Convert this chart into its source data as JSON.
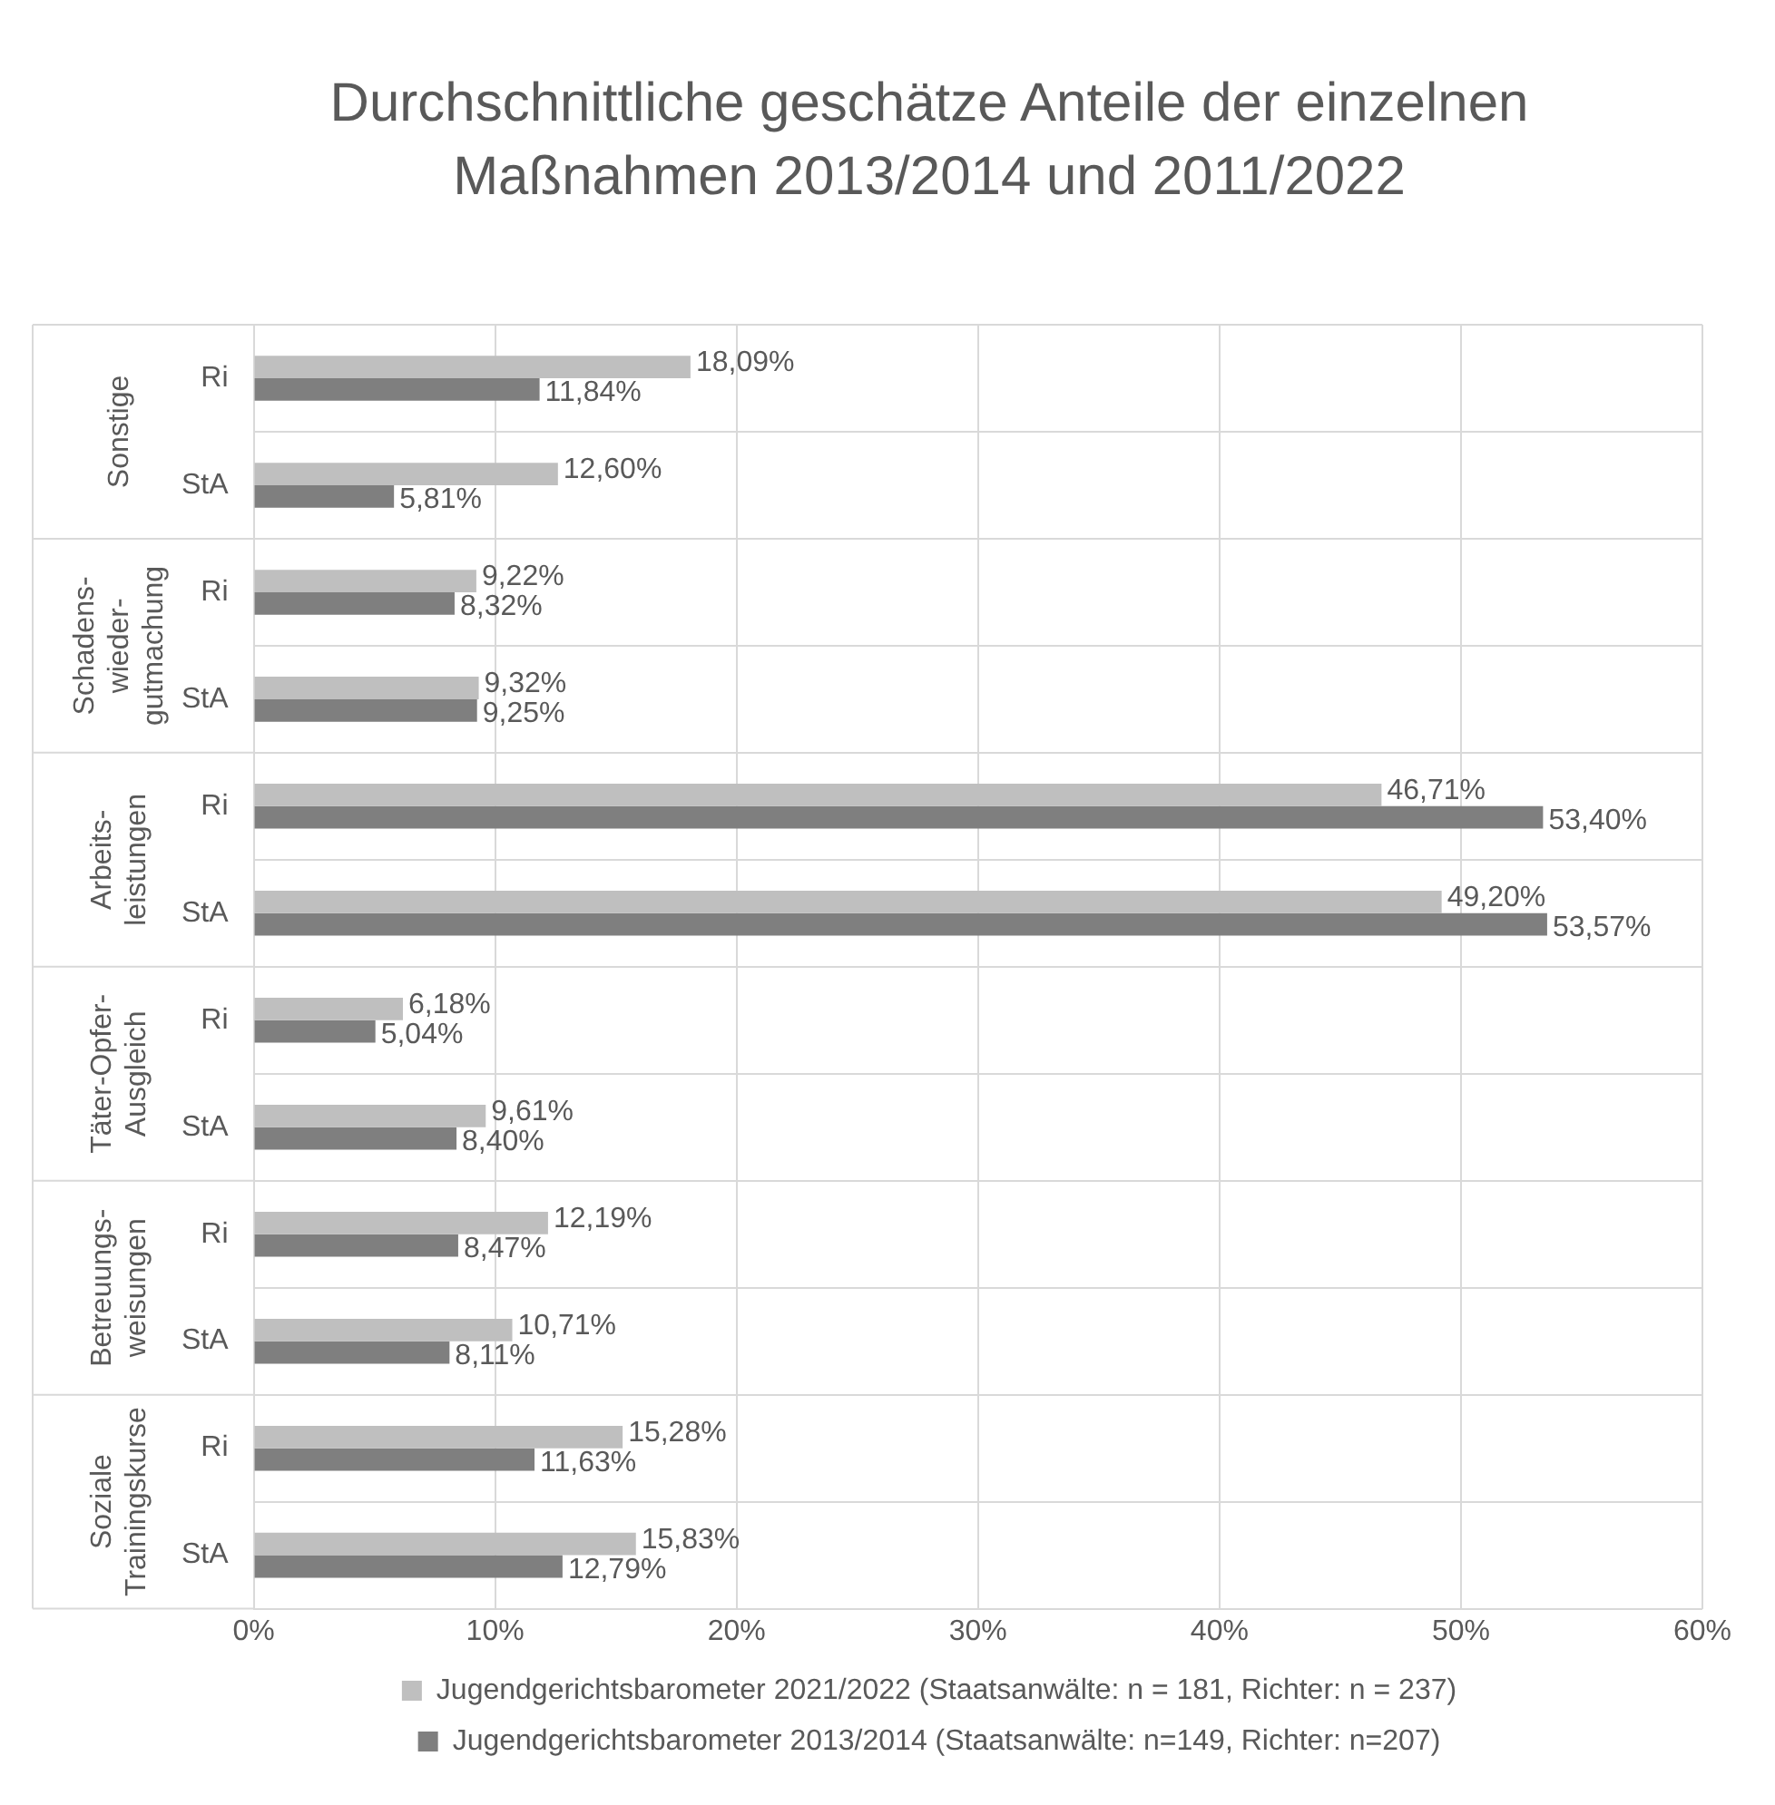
{
  "chart_data": {
    "type": "bar",
    "orientation": "horizontal",
    "title": "Durchschnittliche geschätze Anteile der einzelnen\nMaßnahmen 2013/2014 und 2011/2022",
    "categories": [
      "Ri",
      "StA",
      "Ri",
      "StA",
      "Ri",
      "StA",
      "Ri",
      "StA",
      "Ri",
      "StA",
      "Ri",
      "StA"
    ],
    "series": [
      {
        "name": "Jugendgerichtsbarometer 2021/2022 (Staatsanwälte: n = 181, Richter: n = 237)",
        "color": "#bfbfbf",
        "values": [
          18.09,
          12.6,
          9.22,
          9.32,
          46.71,
          49.2,
          6.18,
          9.61,
          12.19,
          10.71,
          15.28,
          15.83
        ],
        "value_labels": [
          "18,09%",
          "12,60%",
          "9,22%",
          "9,32%",
          "46,71%",
          "49,20%",
          "6,18%",
          "9,61%",
          "12,19%",
          "10,71%",
          "15,28%",
          "15,83%"
        ]
      },
      {
        "name": "Jugendgerichtsbarometer 2013/2014 (Staatsanwälte: n=149, Richter: n=207)",
        "color": "#7f7f7f",
        "values": [
          11.84,
          5.81,
          8.32,
          9.25,
          53.4,
          53.57,
          5.04,
          8.4,
          8.47,
          8.11,
          11.63,
          12.79
        ],
        "value_labels": [
          "11,84%",
          "5,81%",
          "8,32%",
          "9,25%",
          "53,40%",
          "53,57%",
          "5,04%",
          "8,40%",
          "8,47%",
          "8,11%",
          "11,63%",
          "12,79%"
        ]
      }
    ],
    "annotations": [
      "Sonstige",
      "Schadens-\nwieder-\ngutmachung",
      "Arbeits-\nleistungen",
      "Täter-Opfer-\nAusgleich",
      "Betreuungs-\nweisungen",
      "Soziale\nTrainingskurse"
    ],
    "xlim": [
      0,
      60
    ],
    "xticks": [
      {
        "value": 0,
        "label": "0%"
      },
      {
        "value": 10,
        "label": "10%"
      },
      {
        "value": 20,
        "label": "20%"
      },
      {
        "value": 30,
        "label": "30%"
      },
      {
        "value": 40,
        "label": "40%"
      },
      {
        "value": 50,
        "label": "50%"
      },
      {
        "value": 60,
        "label": "60%"
      }
    ],
    "grid": true,
    "legend": "bottom"
  }
}
